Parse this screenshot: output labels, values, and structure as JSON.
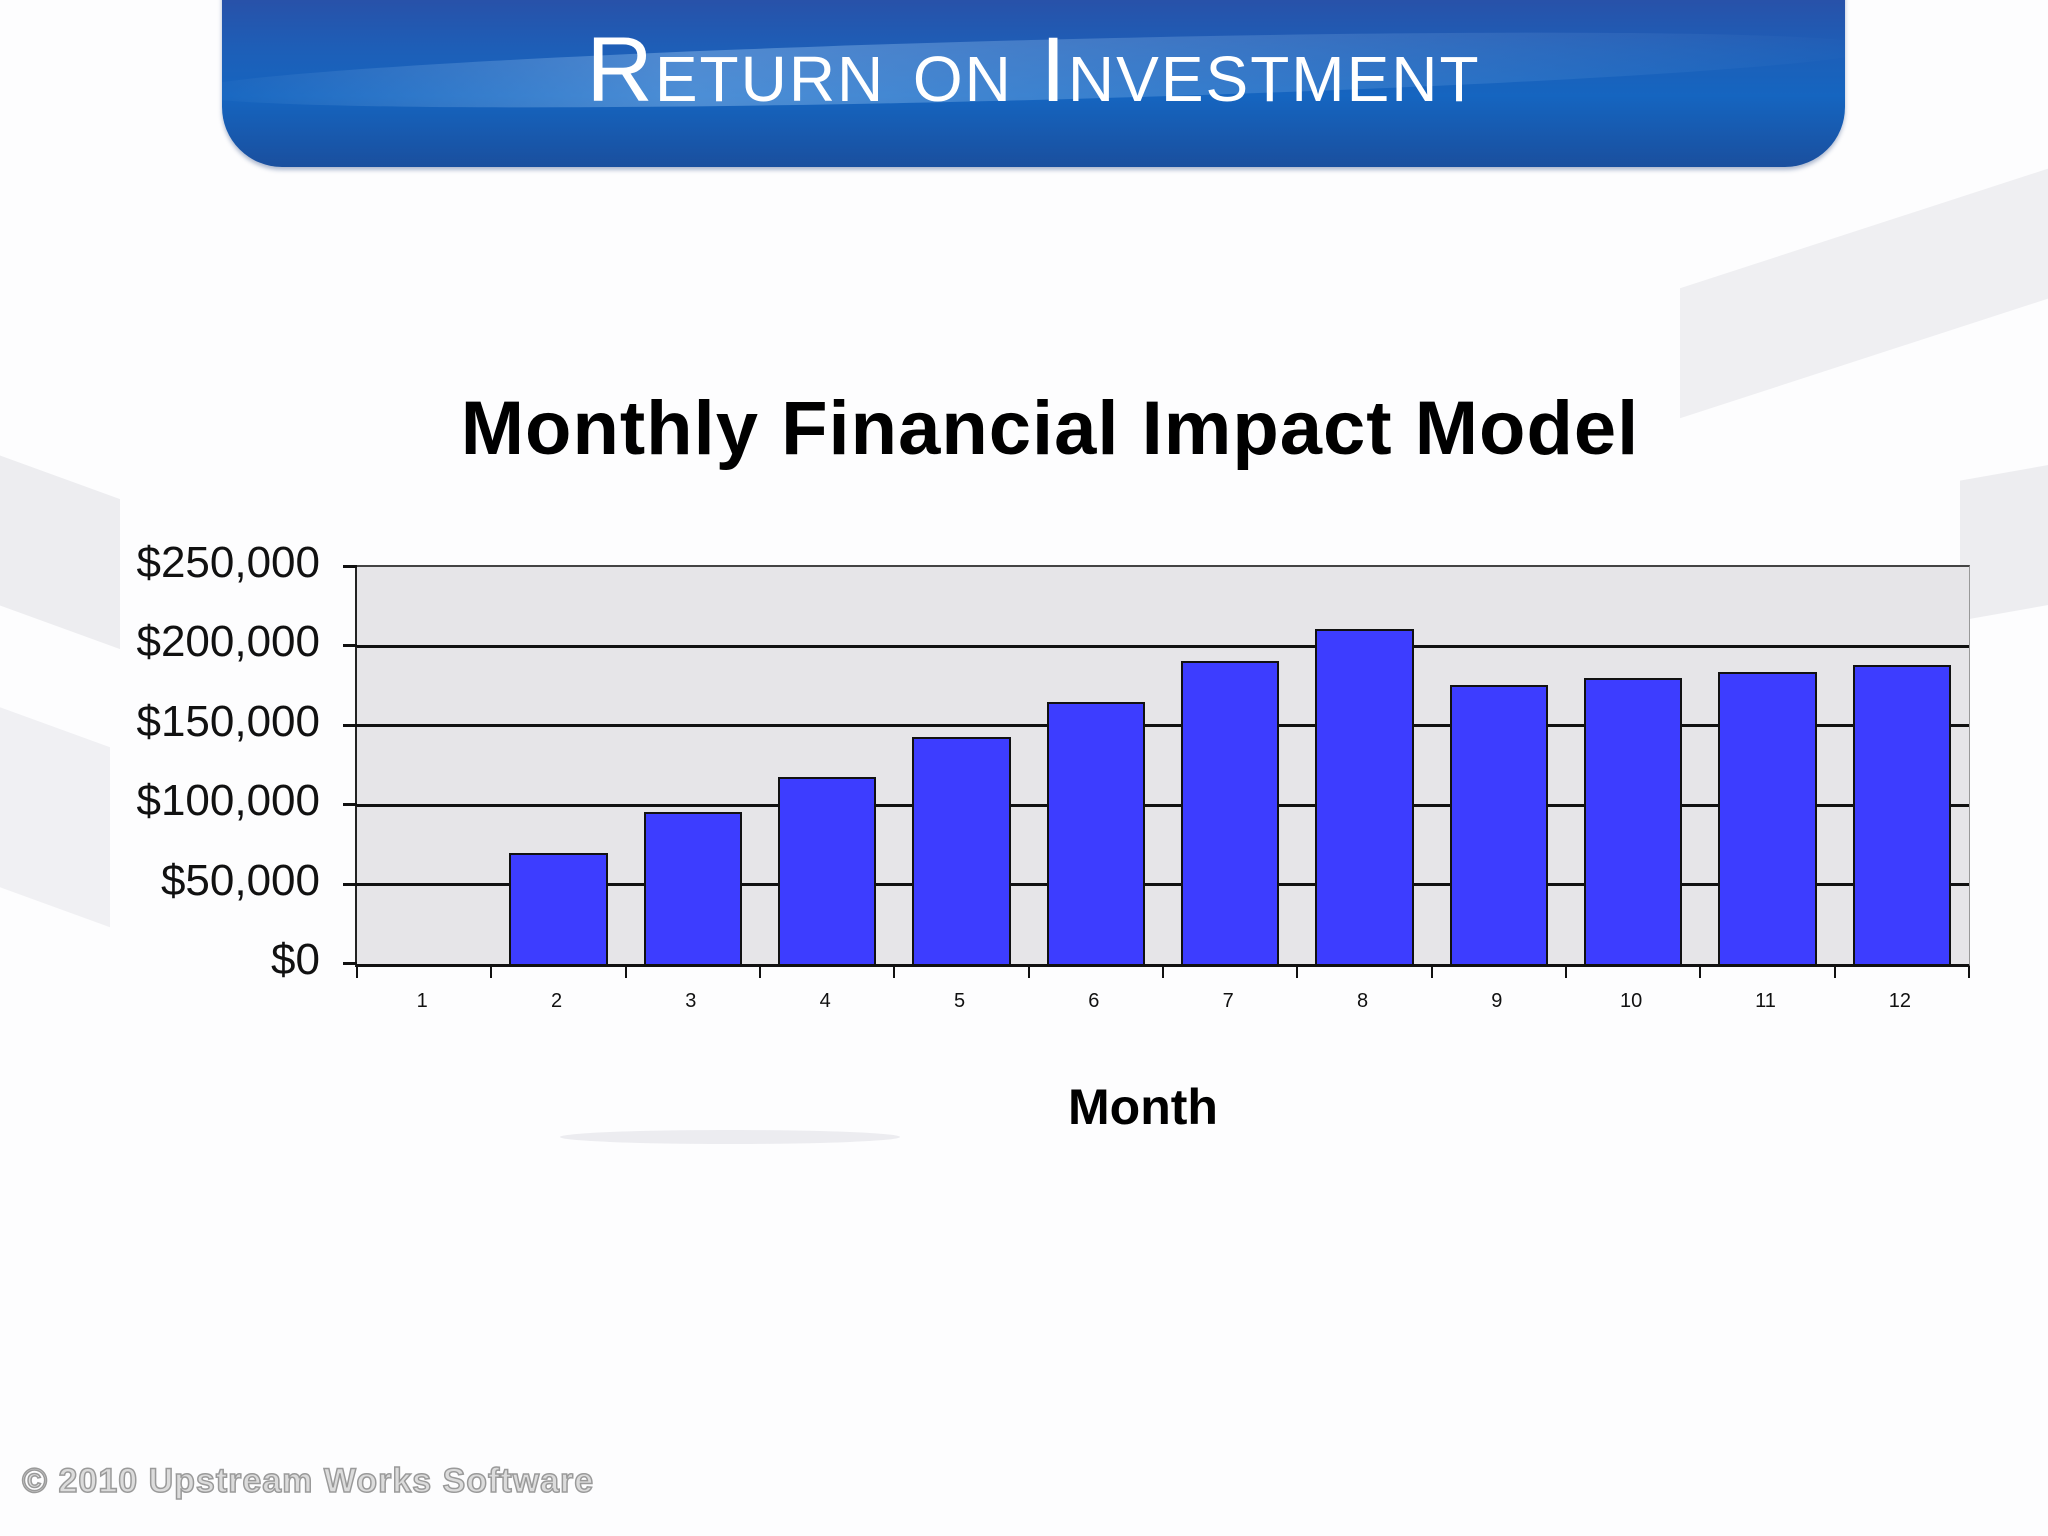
{
  "slide": {
    "title": "Return on Investment",
    "footer": "© 2010 Upstream Works Software",
    "colors": {
      "banner": "#1d5fb8",
      "bar": "#3d3dff",
      "plot_bg": "#e6e5e8"
    }
  },
  "chart_data": {
    "type": "bar",
    "title": "Monthly Financial Impact Model",
    "xlabel": "Month",
    "ylabel": "",
    "categories": [
      "1",
      "2",
      "3",
      "4",
      "5",
      "6",
      "7",
      "8",
      "9",
      "10",
      "11",
      "12"
    ],
    "values": [
      0,
      70000,
      96000,
      118000,
      143000,
      165000,
      191000,
      211000,
      176000,
      180000,
      184000,
      188000
    ],
    "ylim": [
      0,
      250000
    ],
    "yticks": [
      0,
      50000,
      100000,
      150000,
      200000,
      250000
    ],
    "ytick_labels": [
      "$0",
      "$50,000",
      "$100,000",
      "$150,000",
      "$200,000",
      "$250,000"
    ],
    "grid": true,
    "legend": null
  }
}
